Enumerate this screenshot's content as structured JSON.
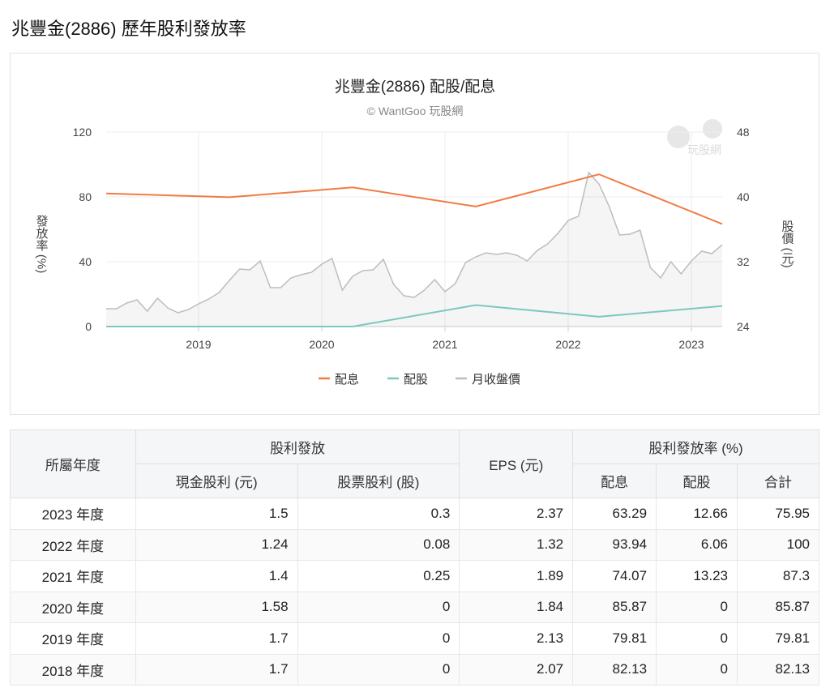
{
  "page_title": "兆豐金(2886) 歷年股利發放率",
  "chart_data": {
    "type": "line",
    "title": "兆豐金(2886) 配股/配息",
    "subtitle": "© WantGoo 玩股網",
    "watermark": "玩股網",
    "ylabel_left": "發放率 (%)",
    "ylabel_right": "股價 (元)",
    "ylim_left": [
      0,
      120
    ],
    "yticks_left": [
      "0",
      "40",
      "80",
      "120"
    ],
    "ylim_right": [
      24,
      48
    ],
    "yticks_right": [
      "24",
      "32",
      "40",
      "48"
    ],
    "xlim": [
      2018.25,
      2023.25
    ],
    "xticks": [
      "2019",
      "2020",
      "2021",
      "2022",
      "2023"
    ],
    "legend": [
      "配息",
      "配股",
      "月收盤價"
    ],
    "colors": {
      "配息": "#f07c45",
      "配股": "#7cc8bf",
      "月收盤價": "#bdbdbd"
    },
    "dividend_x": [
      2018.25,
      2019.25,
      2020.25,
      2021.25,
      2022.25,
      2023.25
    ],
    "series": [
      {
        "name": "配息",
        "values": [
          82.13,
          79.81,
          85.87,
          74.07,
          93.94,
          63.29
        ]
      },
      {
        "name": "配股",
        "values": [
          0,
          0,
          0,
          13.23,
          6.06,
          12.66
        ]
      }
    ],
    "price_start": 2018.25,
    "price_monthly": [
      26.2,
      26.2,
      26.9,
      27.3,
      25.9,
      27.5,
      26.3,
      25.7,
      26.1,
      26.8,
      27.4,
      28.2,
      29.7,
      31.1,
      31.0,
      32.1,
      28.8,
      28.8,
      30.0,
      30.4,
      30.7,
      31.7,
      32.4,
      28.5,
      30.2,
      30.9,
      31.0,
      32.3,
      29.2,
      27.8,
      27.6,
      28.5,
      29.8,
      28.3,
      29.3,
      31.9,
      32.6,
      33.1,
      32.9,
      33.1,
      32.8,
      32.1,
      33.4,
      34.2,
      35.5,
      37.1,
      37.6,
      43.0,
      41.6,
      38.8,
      35.3,
      35.4,
      35.9,
      31.3,
      30.0,
      32.0,
      30.5,
      32.1,
      33.3,
      33.0,
      34.1
    ]
  },
  "table": {
    "h_year": "所屬年度",
    "h_group1": "股利發放",
    "h_cash": "現金股利 (元)",
    "h_stock": "股票股利 (股)",
    "h_eps": "EPS (元)",
    "h_group2": "股利發放率 (%)",
    "h_r1": "配息",
    "h_r2": "配股",
    "h_r3": "合計",
    "rows": [
      [
        "2023 年度",
        "1.5",
        "0.3",
        "2.37",
        "63.29",
        "12.66",
        "75.95"
      ],
      [
        "2022 年度",
        "1.24",
        "0.08",
        "1.32",
        "93.94",
        "6.06",
        "100"
      ],
      [
        "2021 年度",
        "1.4",
        "0.25",
        "1.89",
        "74.07",
        "13.23",
        "87.3"
      ],
      [
        "2020 年度",
        "1.58",
        "0",
        "1.84",
        "85.87",
        "0",
        "85.87"
      ],
      [
        "2019 年度",
        "1.7",
        "0",
        "2.13",
        "79.81",
        "0",
        "79.81"
      ],
      [
        "2018 年度",
        "1.7",
        "0",
        "2.07",
        "82.13",
        "0",
        "82.13"
      ]
    ]
  }
}
